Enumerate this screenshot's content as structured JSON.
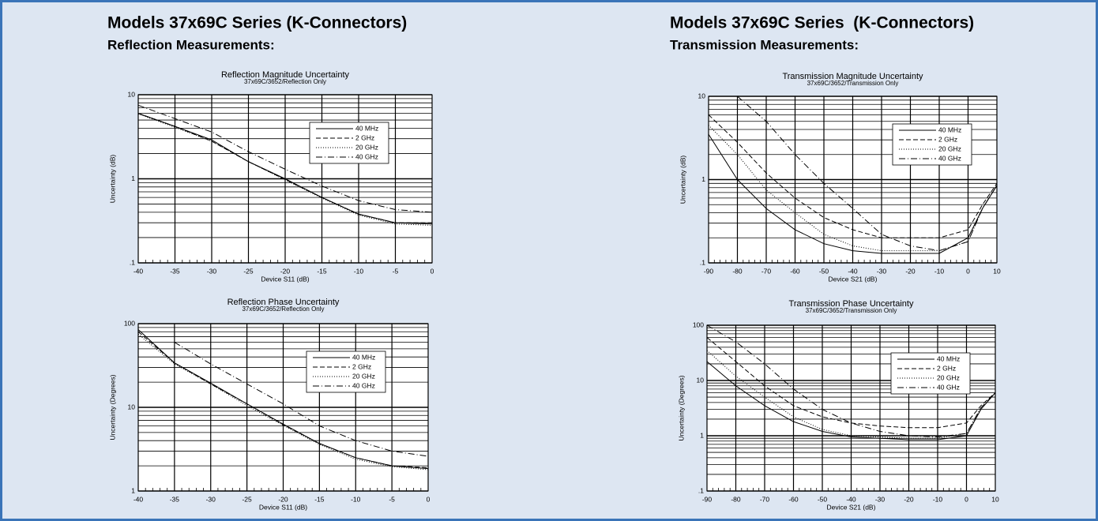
{
  "left": {
    "heading": "Models 37x69C Series (K-Connectors)",
    "subheading": "Reflection Measurements:"
  },
  "right": {
    "heading": "Models 37x69C Series  (K-Connectors)",
    "subheading": "Transmission Measurements:"
  },
  "chart_data": [
    {
      "type": "line",
      "title": "Reflection Magnitude Uncertainty",
      "subtitle": "37x69C/3652/Reflection Only",
      "x_label": "Device S11 (dB)",
      "y_label": "Uncertainty (dB)",
      "x": [
        -40,
        -35,
        -30,
        -25,
        -20,
        -15,
        -10,
        -5,
        0
      ],
      "xlim": [
        -40,
        0
      ],
      "xticks": [
        -40,
        -35,
        -30,
        -25,
        -20,
        -15,
        -10,
        -5,
        0
      ],
      "ylim": [
        0.1,
        10
      ],
      "yticks": [
        {
          "value": 0.1,
          "label": ".1"
        },
        1,
        10
      ],
      "log_y": true,
      "grid": true,
      "legend": "upper right",
      "series": [
        {
          "name": "40 MHz",
          "color": "#000000",
          "dash": "solid",
          "values": [
            6,
            4.2,
            2.9,
            1.6,
            1.0,
            0.6,
            0.38,
            0.3,
            0.29
          ]
        },
        {
          "name": "2 GHz",
          "color": "#000000",
          "dash": "dashed",
          "values": [
            6,
            4.2,
            2.8,
            1.6,
            0.98,
            0.6,
            0.38,
            0.3,
            0.3
          ]
        },
        {
          "name": "20 GHz",
          "color": "#000000",
          "dash": "dotted",
          "values": [
            5.9,
            4.1,
            2.8,
            1.6,
            0.97,
            0.59,
            0.37,
            0.29,
            0.28
          ]
        },
        {
          "name": "40 GHz",
          "color": "#000000",
          "dash": "dashdot",
          "values": [
            7.5,
            5.2,
            3.6,
            2.1,
            1.3,
            0.82,
            0.55,
            0.43,
            0.4
          ]
        }
      ]
    },
    {
      "type": "line",
      "title": "Reflection Phase Uncertainty",
      "subtitle": "37x69C/3652/Reflection Only",
      "x_label": "Device S11 (dB)",
      "y_label": "Uncertainty (Degrees)",
      "x": [
        -40,
        -35,
        -30,
        -25,
        -20,
        -15,
        -10,
        -5,
        0
      ],
      "xlim": [
        -40,
        0
      ],
      "xticks": [
        -40,
        -35,
        -30,
        -25,
        -20,
        -15,
        -10,
        -5,
        0
      ],
      "ylim": [
        1,
        100
      ],
      "yticks": [
        1,
        10,
        100
      ],
      "log_y": true,
      "grid": true,
      "legend": "upper right",
      "series": [
        {
          "name": "40 MHz",
          "color": "#000000",
          "dash": "solid",
          "values": [
            85,
            34,
            19.5,
            11,
            6.3,
            3.7,
            2.5,
            2.0,
            1.85
          ]
        },
        {
          "name": "2 GHz",
          "color": "#000000",
          "dash": "dashed",
          "values": [
            80,
            34,
            19,
            11,
            6.2,
            3.7,
            2.5,
            2.0,
            1.9
          ]
        },
        {
          "name": "20 GHz",
          "color": "#000000",
          "dash": "dotted",
          "values": [
            75,
            33,
            19,
            10.5,
            6.1,
            3.6,
            2.4,
            1.95,
            1.8
          ]
        },
        {
          "name": "40 GHz",
          "color": "#000000",
          "dash": "dashdot",
          "values": [
            null,
            60,
            33,
            19,
            11,
            6,
            4,
            3,
            2.6
          ]
        }
      ]
    },
    {
      "type": "line",
      "title": "Transmission Magnitude Uncertainty",
      "subtitle": "37x69C/3652/Transmission Only",
      "x_label": "Device S21 (dB)",
      "y_label": "Uncertainty (dB)",
      "x": [
        -90,
        -80,
        -70,
        -60,
        -50,
        -40,
        -30,
        -20,
        -10,
        0,
        5,
        10
      ],
      "xlim": [
        -90,
        10
      ],
      "xticks": [
        -90,
        -80,
        -70,
        -60,
        -50,
        -40,
        -30,
        -20,
        -10,
        0,
        10
      ],
      "ylim": [
        0.1,
        10
      ],
      "yticks": [
        {
          "value": 0.1,
          "label": ".1"
        },
        1,
        10
      ],
      "log_y": true,
      "grid": true,
      "legend": "upper right",
      "series": [
        {
          "name": "40 MHz",
          "color": "#000000",
          "dash": "solid",
          "values": [
            3.5,
            1.0,
            0.45,
            0.25,
            0.17,
            0.14,
            0.13,
            0.13,
            0.13,
            0.2,
            0.45,
            0.85
          ]
        },
        {
          "name": "2 GHz",
          "color": "#000000",
          "dash": "dashed",
          "values": [
            6,
            2.8,
            1.2,
            0.6,
            0.35,
            0.25,
            0.2,
            0.2,
            0.2,
            0.25,
            0.5,
            0.9
          ]
        },
        {
          "name": "20 GHz",
          "color": "#000000",
          "dash": "dotted",
          "values": [
            4.5,
            2.0,
            0.75,
            0.4,
            0.22,
            0.16,
            0.14,
            0.14,
            0.14,
            0.18,
            0.45,
            0.85
          ]
        },
        {
          "name": "40 GHz",
          "color": "#000000",
          "dash": "dashdot",
          "values": [
            null,
            10,
            5,
            2,
            0.9,
            0.45,
            0.22,
            0.16,
            0.14,
            0.18,
            0.45,
            0.85
          ]
        }
      ]
    },
    {
      "type": "line",
      "title": "Transmission Phase Uncertainty",
      "subtitle": "37x69C/3652/Transmission Only",
      "x_label": "Device S21 (dB)",
      "y_label": "Uncertainty (Degrees)",
      "x": [
        -90,
        -80,
        -70,
        -60,
        -50,
        -40,
        -30,
        -20,
        -10,
        0,
        5,
        10
      ],
      "xlim": [
        -90,
        10
      ],
      "xticks": [
        -90,
        -80,
        -70,
        -60,
        -50,
        -40,
        -30,
        -20,
        -10,
        0,
        10
      ],
      "ylim": [
        0.1,
        100
      ],
      "yticks": [
        {
          "value": 0.1,
          "label": ".1"
        },
        1,
        10,
        100
      ],
      "log_y": true,
      "grid": true,
      "legend": "upper right",
      "series": [
        {
          "name": "40 MHz",
          "color": "#000000",
          "dash": "solid",
          "values": [
            22,
            8,
            3.5,
            1.8,
            1.2,
            0.95,
            0.9,
            0.85,
            0.85,
            1.0,
            3,
            6
          ]
        },
        {
          "name": "2 GHz",
          "color": "#000000",
          "dash": "dashed",
          "values": [
            60,
            22,
            8,
            3.5,
            2.2,
            1.7,
            1.5,
            1.4,
            1.4,
            1.7,
            3.5,
            6
          ]
        },
        {
          "name": "20 GHz",
          "color": "#000000",
          "dash": "dotted",
          "values": [
            35,
            12,
            5,
            2.2,
            1.3,
            1.0,
            0.95,
            0.9,
            0.9,
            1.1,
            3.2,
            6
          ]
        },
        {
          "name": "40 GHz",
          "color": "#000000",
          "dash": "dashdot",
          "values": [
            100,
            50,
            20,
            7,
            3,
            1.7,
            1.2,
            1.0,
            0.95,
            1.1,
            3.2,
            6
          ]
        }
      ]
    }
  ]
}
